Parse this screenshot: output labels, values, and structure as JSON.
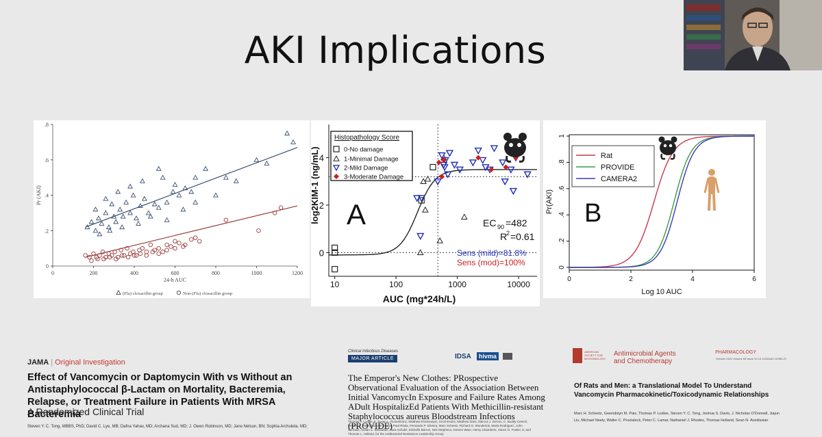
{
  "slide": {
    "title": "AKI Implications"
  },
  "chart_data": [
    {
      "type": "scatter",
      "ylabel": "Pr (AKI)",
      "xlabel": "24-h AUC",
      "x_ticks": [
        0,
        200,
        400,
        600,
        800,
        1000,
        1200
      ],
      "y_ticks": [
        0,
        0.2,
        0.4,
        0.6,
        0.8
      ],
      "y_tick_labels": [
        "0",
        ".2",
        ".4",
        ".6",
        ".8"
      ],
      "xlim": [
        0,
        1200
      ],
      "ylim": [
        0,
        0.8
      ],
      "legend": [
        "(Flu) cloxacillin group",
        "Non-(Flu) cloxacillin group"
      ],
      "series": [
        {
          "name": "(Flu) cloxacillin group",
          "color": "#3b4f6e",
          "marker": "triangle",
          "x": [
            170,
            190,
            210,
            225,
            240,
            260,
            275,
            290,
            300,
            310,
            330,
            345,
            360,
            380,
            395,
            410,
            430,
            450,
            470,
            500,
            520,
            540,
            560,
            590,
            620,
            650,
            680,
            700,
            750,
            800,
            850,
            900,
            1000,
            1050,
            1150,
            1180,
            230,
            280,
            340,
            420,
            480,
            560,
            640,
            210,
            260,
            320,
            380,
            440,
            520,
            600,
            700
          ],
          "y": [
            0.22,
            0.25,
            0.2,
            0.27,
            0.24,
            0.3,
            0.22,
            0.35,
            0.28,
            0.25,
            0.32,
            0.28,
            0.36,
            0.3,
            0.4,
            0.27,
            0.34,
            0.38,
            0.3,
            0.35,
            0.33,
            0.5,
            0.36,
            0.42,
            0.4,
            0.44,
            0.42,
            0.5,
            0.55,
            0.4,
            0.5,
            0.48,
            0.6,
            0.58,
            0.75,
            0.7,
            0.18,
            0.2,
            0.22,
            0.24,
            0.28,
            0.26,
            0.32,
            0.32,
            0.38,
            0.42,
            0.45,
            0.48,
            0.55,
            0.46,
            0.36
          ]
        },
        {
          "name": "Non-(Flu) cloxacillin group",
          "color": "#9b3b3b",
          "marker": "circle",
          "x": [
            160,
            180,
            200,
            215,
            230,
            245,
            260,
            275,
            290,
            305,
            320,
            335,
            350,
            365,
            380,
            395,
            410,
            425,
            440,
            460,
            480,
            500,
            520,
            540,
            560,
            580,
            600,
            620,
            650,
            680,
            700,
            720,
            850,
            1010,
            1090,
            1120,
            190,
            220,
            250,
            280,
            310,
            340,
            370,
            400,
            430,
            460,
            490,
            520,
            560,
            600,
            640
          ],
          "y": [
            0.06,
            0.05,
            0.07,
            0.05,
            0.06,
            0.08,
            0.05,
            0.07,
            0.06,
            0.08,
            0.05,
            0.09,
            0.06,
            0.1,
            0.07,
            0.08,
            0.06,
            0.09,
            0.1,
            0.08,
            0.12,
            0.09,
            0.1,
            0.08,
            0.12,
            0.11,
            0.14,
            0.13,
            0.12,
            0.15,
            0.16,
            0.14,
            0.26,
            0.2,
            0.3,
            0.33,
            0.03,
            0.04,
            0.04,
            0.05,
            0.04,
            0.06,
            0.05,
            0.06,
            0.07,
            0.06,
            0.08,
            0.07,
            0.09,
            0.1,
            0.11
          ]
        }
      ],
      "fit_lines": [
        {
          "color": "#3b4f6e",
          "x": [
            160,
            1200
          ],
          "y": [
            0.22,
            0.67
          ]
        },
        {
          "color": "#9b3b3b",
          "x": [
            160,
            1200
          ],
          "y": [
            0.05,
            0.34
          ]
        }
      ]
    },
    {
      "type": "scatter",
      "xlabel": "AUC (mg*24h/L)",
      "ylabel": "log2KIM-1  (ng/mL)",
      "x_scale": "log",
      "x_ticks": [
        10,
        100,
        1000,
        10000
      ],
      "x_tick_labels": [
        "10",
        "100",
        "1000",
        "10000"
      ],
      "y_ticks": [
        0,
        2,
        4
      ],
      "panel_label": "A",
      "legend_title": "Histopathology Score",
      "legend": [
        "0-No damage",
        "1-Minimal Damage",
        "2-Mild Damage",
        "3-Moderate Damage"
      ],
      "annotations": [
        "EC",
        "90",
        "=482",
        "R",
        "2",
        "=0.61",
        "Sens (mild)=81.8%",
        "Sens (mod)=100%"
      ],
      "colors": {
        "black": "#222222",
        "blue": "#1f2fb3",
        "red": "#cc1f1f"
      },
      "series": [
        {
          "name": "0-No damage",
          "marker": "square",
          "color": "#222222",
          "x": [
            10,
            10,
            10,
            260,
            400
          ],
          "y": [
            0.2,
            0.0,
            -0.7,
            2.2,
            3.6
          ]
        },
        {
          "name": "1-Minimal Damage",
          "marker": "triangle",
          "color": "#222222",
          "x": [
            250,
            300,
            280,
            330,
            520,
            1300,
            600
          ],
          "y": [
            0.0,
            1.8,
            3.0,
            3.1,
            0.5,
            1.5,
            4.0
          ]
        },
        {
          "name": "2-Mild Damage",
          "marker": "triangle-down",
          "color": "#1f2fb3",
          "x": [
            220,
            250,
            260,
            480,
            560,
            620,
            640,
            700,
            900,
            1100,
            1800,
            2200,
            2600,
            3400,
            4000,
            5500,
            6000,
            7500,
            8200,
            9000,
            14000,
            600,
            750,
            2900
          ],
          "y": [
            2.3,
            0.7,
            2.3,
            3.0,
            4.1,
            3.6,
            3.9,
            3.3,
            3.7,
            3.5,
            3.8,
            4.3,
            3.9,
            3.5,
            4.4,
            3.8,
            3.0,
            3.5,
            2.6,
            4.0,
            3.3,
            3.7,
            4.2,
            3.6
          ]
        },
        {
          "name": "3-Moderate Damage",
          "marker": "diamond",
          "color": "#cc1f1f",
          "x": [
            500,
            560,
            600,
            2200,
            3600,
            6200,
            9000
          ],
          "y": [
            3.8,
            3.2,
            3.9,
            4.0,
            3.5,
            3.6,
            4.0
          ]
        }
      ],
      "ylim": [
        -1,
        5.4
      ],
      "xlim": [
        8,
        20000
      ]
    },
    {
      "type": "line",
      "xlabel": "Log 10 AUC",
      "ylabel": "Pr(AKI)",
      "panel_label": "B",
      "x_ticks": [
        0,
        2,
        4,
        6
      ],
      "y_ticks": [
        0,
        0.2,
        0.4,
        0.6,
        0.8,
        1
      ],
      "y_tick_labels": [
        "0",
        ".2",
        ".4",
        ".6",
        ".8",
        "1"
      ],
      "xlim": [
        0,
        6
      ],
      "ylim": [
        0,
        1
      ],
      "legend": [
        "Rat",
        "PROVIDE",
        "CAMERA2"
      ],
      "series": [
        {
          "name": "Rat",
          "color": "#c8384a",
          "midpoint": 2.75,
          "slope": 3.2
        },
        {
          "name": "PROVIDE",
          "color": "#3c9a4a",
          "midpoint": 3.4,
          "slope": 3.6
        },
        {
          "name": "CAMERA2",
          "color": "#3a3ab8",
          "midpoint": 3.5,
          "slope": 3.6
        }
      ]
    }
  ],
  "refs": {
    "r1": {
      "journal": "JAMA",
      "sep": " | ",
      "kind": "Original Investigation",
      "title": "Effect of Vancomycin or Daptomycin With vs Without an Antistaphylococcal β-Lactam on Mortality, Bacteremia, Relapse, or Treatment Failure in Patients With MRSA Bacteremia",
      "subtitle": "A Randomized Clinical Trial",
      "authors": "Steven Y. C. Tong, MBBS, PhD; David C. Lye, MB; Dafna Yahav, MD; Archana Sud, MD; J. Owen Robinson, MD; Jane Nelson, BN; Sophia Archuleta, MD;"
    },
    "r2": {
      "journal": "Clinical Infectious Diseases",
      "kind": "MAJOR ARTICLE",
      "logo1": "IDSA",
      "logo2": "hivma",
      "title": "The Emperor's New Clothes: PRospective Observational Evaluation of the Association Between Initial VancomycIn Exposure and Failure Rates Among ADult HospitalizEd Patients With Methicillin-resistant Staphylococcus aureus Bloodstream Infections (PROVIDE)",
      "authors": "Thomas P. Lodise Jr, Susan L. Rosenkranz, Matthew Finnemeyer, Scott Evans, Matthew Sims, Marcus J. Zervos, C. Buddy Creech, Pratish C. Patel, Michael Keefer, Paul Riska, Fernando P. Silveira, Marc Scheetz, Richard G. Wunderink, Maria Rodriguez, John Schrank, Susan C. Bleasdale, Sara Schultz, Michelle Barron, Neil Stephens, Doreen Ware, Henry Chambers, Vance G. Fowler Jr, and Thomas L. Holland, for the Antibacterial Resistance Leadership Group"
    },
    "r3": {
      "society": "AMERICAN SOCIETY FOR MICROBIOLOGY",
      "journal_l1": "Antimicrobial Agents",
      "journal_l2": "and Chemotherapy",
      "dept": "PHARMACOLOGY",
      "meta": "October 2021 Volume 65 Issue 10 10.1128/AAC.01060-21",
      "title": "Of Rats and Men: a Translational Model To Understand Vancomycin Pharmacokinetic/Toxicodynamic Relationships",
      "authors": "Marc H. Scheetz, Gwendolyn M. Pais, Thomas P. Lodise, Steven Y. C. Tong, Joshua S. Davis, J. Nicholas O'Donnell, Jiajun Liu, Michael Neely, Walter C. Prozialeck, Peter C. Lamar, Nathaniel J. Rhodes, Thomas Holland, Sean N. Avedissian"
    }
  }
}
